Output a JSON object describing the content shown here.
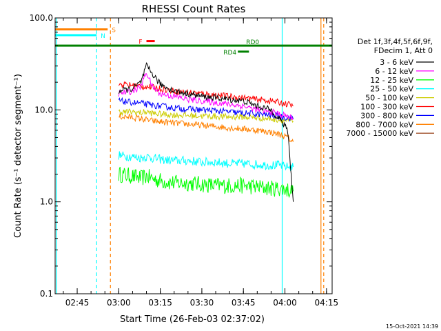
{
  "chart_data": {
    "type": "line",
    "title": "RHESSI Count Rates",
    "xlabel": "Start Time (26-Feb-03 02:37:02)",
    "ylabel": "Count Rate (s⁻¹ detector segment⁻¹)",
    "yscale": "log",
    "ylim": [
      0.1,
      100.0
    ],
    "xlim": [
      "02:37:02",
      "04:17:02"
    ],
    "x_ticks": [
      "02:45",
      "03:00",
      "03:15",
      "03:30",
      "03:45",
      "04:00",
      "04:15"
    ],
    "y_ticks": [
      "0.1",
      "1.0",
      "10.0",
      "100.0"
    ],
    "grid": false,
    "legend_position": "right",
    "legend_header": [
      "Det 1f,3f,4f,5f,6f,9f,",
      "FDecim 1, Att 0"
    ],
    "series": [
      {
        "name": "3 - 6 keV",
        "color": "#000000",
        "x": [
          "02:56",
          "03:00",
          "03:05",
          "03:08",
          "03:10",
          "03:12",
          "03:15",
          "03:20",
          "03:25",
          "03:30",
          "03:35",
          "03:40",
          "03:45",
          "03:50",
          "03:55",
          "03:58",
          "04:01",
          "04:03"
        ],
        "y": [
          null,
          16,
          17,
          20,
          30,
          25,
          19,
          16,
          15,
          14,
          13.5,
          13,
          12.5,
          11,
          10,
          8,
          6,
          1.0
        ]
      },
      {
        "name": "6 - 12 keV",
        "color": "#ff00ff",
        "x": [
          "02:56",
          "03:00",
          "03:05",
          "03:08",
          "03:10",
          "03:12",
          "03:15",
          "03:20",
          "03:25",
          "03:30",
          "03:35",
          "03:40",
          "03:45",
          "03:50",
          "03:55",
          "03:58",
          "04:01",
          "04:03"
        ],
        "y": [
          null,
          15,
          16,
          18,
          26,
          18,
          15,
          14,
          13,
          12.5,
          12,
          11.5,
          11,
          10,
          9.5,
          9,
          8.5,
          8
        ]
      },
      {
        "name": "12 - 25 keV",
        "color": "#00ff00",
        "x": [
          "02:56",
          "03:00",
          "03:05",
          "03:08",
          "03:10",
          "03:12",
          "03:15",
          "03:20",
          "03:25",
          "03:30",
          "03:35",
          "03:40",
          "03:45",
          "03:50",
          "03:55",
          "03:58",
          "04:01",
          "04:03"
        ],
        "y": [
          null,
          2.0,
          1.9,
          1.8,
          1.9,
          1.8,
          1.7,
          1.6,
          1.6,
          1.55,
          1.5,
          1.5,
          1.5,
          1.45,
          1.4,
          1.4,
          1.35,
          1.3
        ]
      },
      {
        "name": "25 - 50 keV",
        "color": "#00ffff",
        "x": [
          "02:56",
          "03:00",
          "03:05",
          "03:08",
          "03:10",
          "03:12",
          "03:15",
          "03:20",
          "03:25",
          "03:30",
          "03:35",
          "03:40",
          "03:45",
          "03:50",
          "03:55",
          "03:58",
          "04:01",
          "04:03"
        ],
        "y": [
          null,
          3.2,
          3.1,
          3.0,
          3.1,
          3.0,
          2.9,
          2.8,
          2.8,
          2.7,
          2.7,
          2.6,
          2.6,
          2.55,
          2.5,
          2.5,
          2.4,
          2.4
        ]
      },
      {
        "name": "50 - 100 keV",
        "color": "#cccc00",
        "x": [
          "02:56",
          "03:00",
          "03:05",
          "03:08",
          "03:10",
          "03:12",
          "03:15",
          "03:20",
          "03:25",
          "03:30",
          "03:35",
          "03:40",
          "03:45",
          "03:50",
          "03:55",
          "03:58",
          "04:01",
          "04:03"
        ],
        "y": [
          null,
          9.5,
          9.5,
          9.3,
          9.5,
          9.2,
          9.0,
          8.8,
          8.7,
          8.6,
          8.5,
          8.4,
          8.4,
          8.2,
          8.0,
          7.8,
          7.6,
          7.5
        ]
      },
      {
        "name": "100 - 300 keV",
        "color": "#ff0000",
        "x": [
          "02:56",
          "03:00",
          "03:05",
          "03:08",
          "03:10",
          "03:12",
          "03:15",
          "03:20",
          "03:25",
          "03:30",
          "03:35",
          "03:40",
          "03:45",
          "03:50",
          "03:55",
          "03:58",
          "04:01",
          "04:03"
        ],
        "y": [
          null,
          19,
          18.5,
          18,
          18,
          17.5,
          17,
          16,
          15.5,
          15,
          14.5,
          14,
          13.5,
          13,
          12.5,
          12,
          11.5,
          11
        ]
      },
      {
        "name": "300 - 800 keV",
        "color": "#0000ff",
        "x": [
          "02:56",
          "03:00",
          "03:05",
          "03:08",
          "03:10",
          "03:12",
          "03:15",
          "03:20",
          "03:25",
          "03:30",
          "03:35",
          "03:40",
          "03:45",
          "03:50",
          "03:55",
          "03:58",
          "04:01",
          "04:03"
        ],
        "y": [
          null,
          12.5,
          12,
          11.8,
          11.5,
          11.2,
          11,
          10.5,
          10.2,
          10,
          9.8,
          9.5,
          9.2,
          9,
          8.8,
          8.5,
          8.2,
          8
        ]
      },
      {
        "name": "800 - 7000 keV",
        "color": "#ff8000",
        "x": [
          "02:56",
          "03:00",
          "03:05",
          "03:08",
          "03:10",
          "03:12",
          "03:15",
          "03:20",
          "03:25",
          "03:30",
          "03:35",
          "03:40",
          "03:45",
          "03:50",
          "03:55",
          "03:58",
          "04:01",
          "04:03"
        ],
        "y": [
          null,
          8.5,
          8.3,
          8,
          7.8,
          7.6,
          7.4,
          7.2,
          7,
          6.8,
          6.6,
          6.4,
          6.2,
          6,
          5.7,
          5.4,
          5,
          4.5
        ]
      },
      {
        "name": "7000 - 15000 keV",
        "color": "#a0522d",
        "x": [],
        "y": []
      }
    ],
    "annotations": [
      {
        "text": "S",
        "color": "#ff8000",
        "x_start": "02:37",
        "x_end": "02:56",
        "y": 75
      },
      {
        "text": "N",
        "color": "#00ffff",
        "x_start": "02:37",
        "x_end": "02:52",
        "y": 65
      },
      {
        "text": "F",
        "color": "#ff0000",
        "x_start": "03:10",
        "x_end": "03:13",
        "y": 56
      },
      {
        "text": "RD0",
        "color": "#008000",
        "x_start": "02:37",
        "x_end": "04:17",
        "y": 50
      },
      {
        "text": "RD4",
        "color": "#008000",
        "x_start": "03:43",
        "x_end": "03:47",
        "y": 43
      }
    ],
    "vertical_markers": [
      {
        "x": "02:37:30",
        "color": "#00ffff",
        "style": "solid"
      },
      {
        "x": "02:52",
        "color": "#00ffff",
        "style": "dashed"
      },
      {
        "x": "02:57",
        "color": "#ff8000",
        "style": "dashed"
      },
      {
        "x": "03:59",
        "color": "#00ffff",
        "style": "solid"
      },
      {
        "x": "04:13",
        "color": "#ff8000",
        "style": "solid"
      },
      {
        "x": "04:14",
        "color": "#ff8000",
        "style": "dashed"
      }
    ]
  },
  "footer_timestamp": "15-Oct-2021 14:39"
}
